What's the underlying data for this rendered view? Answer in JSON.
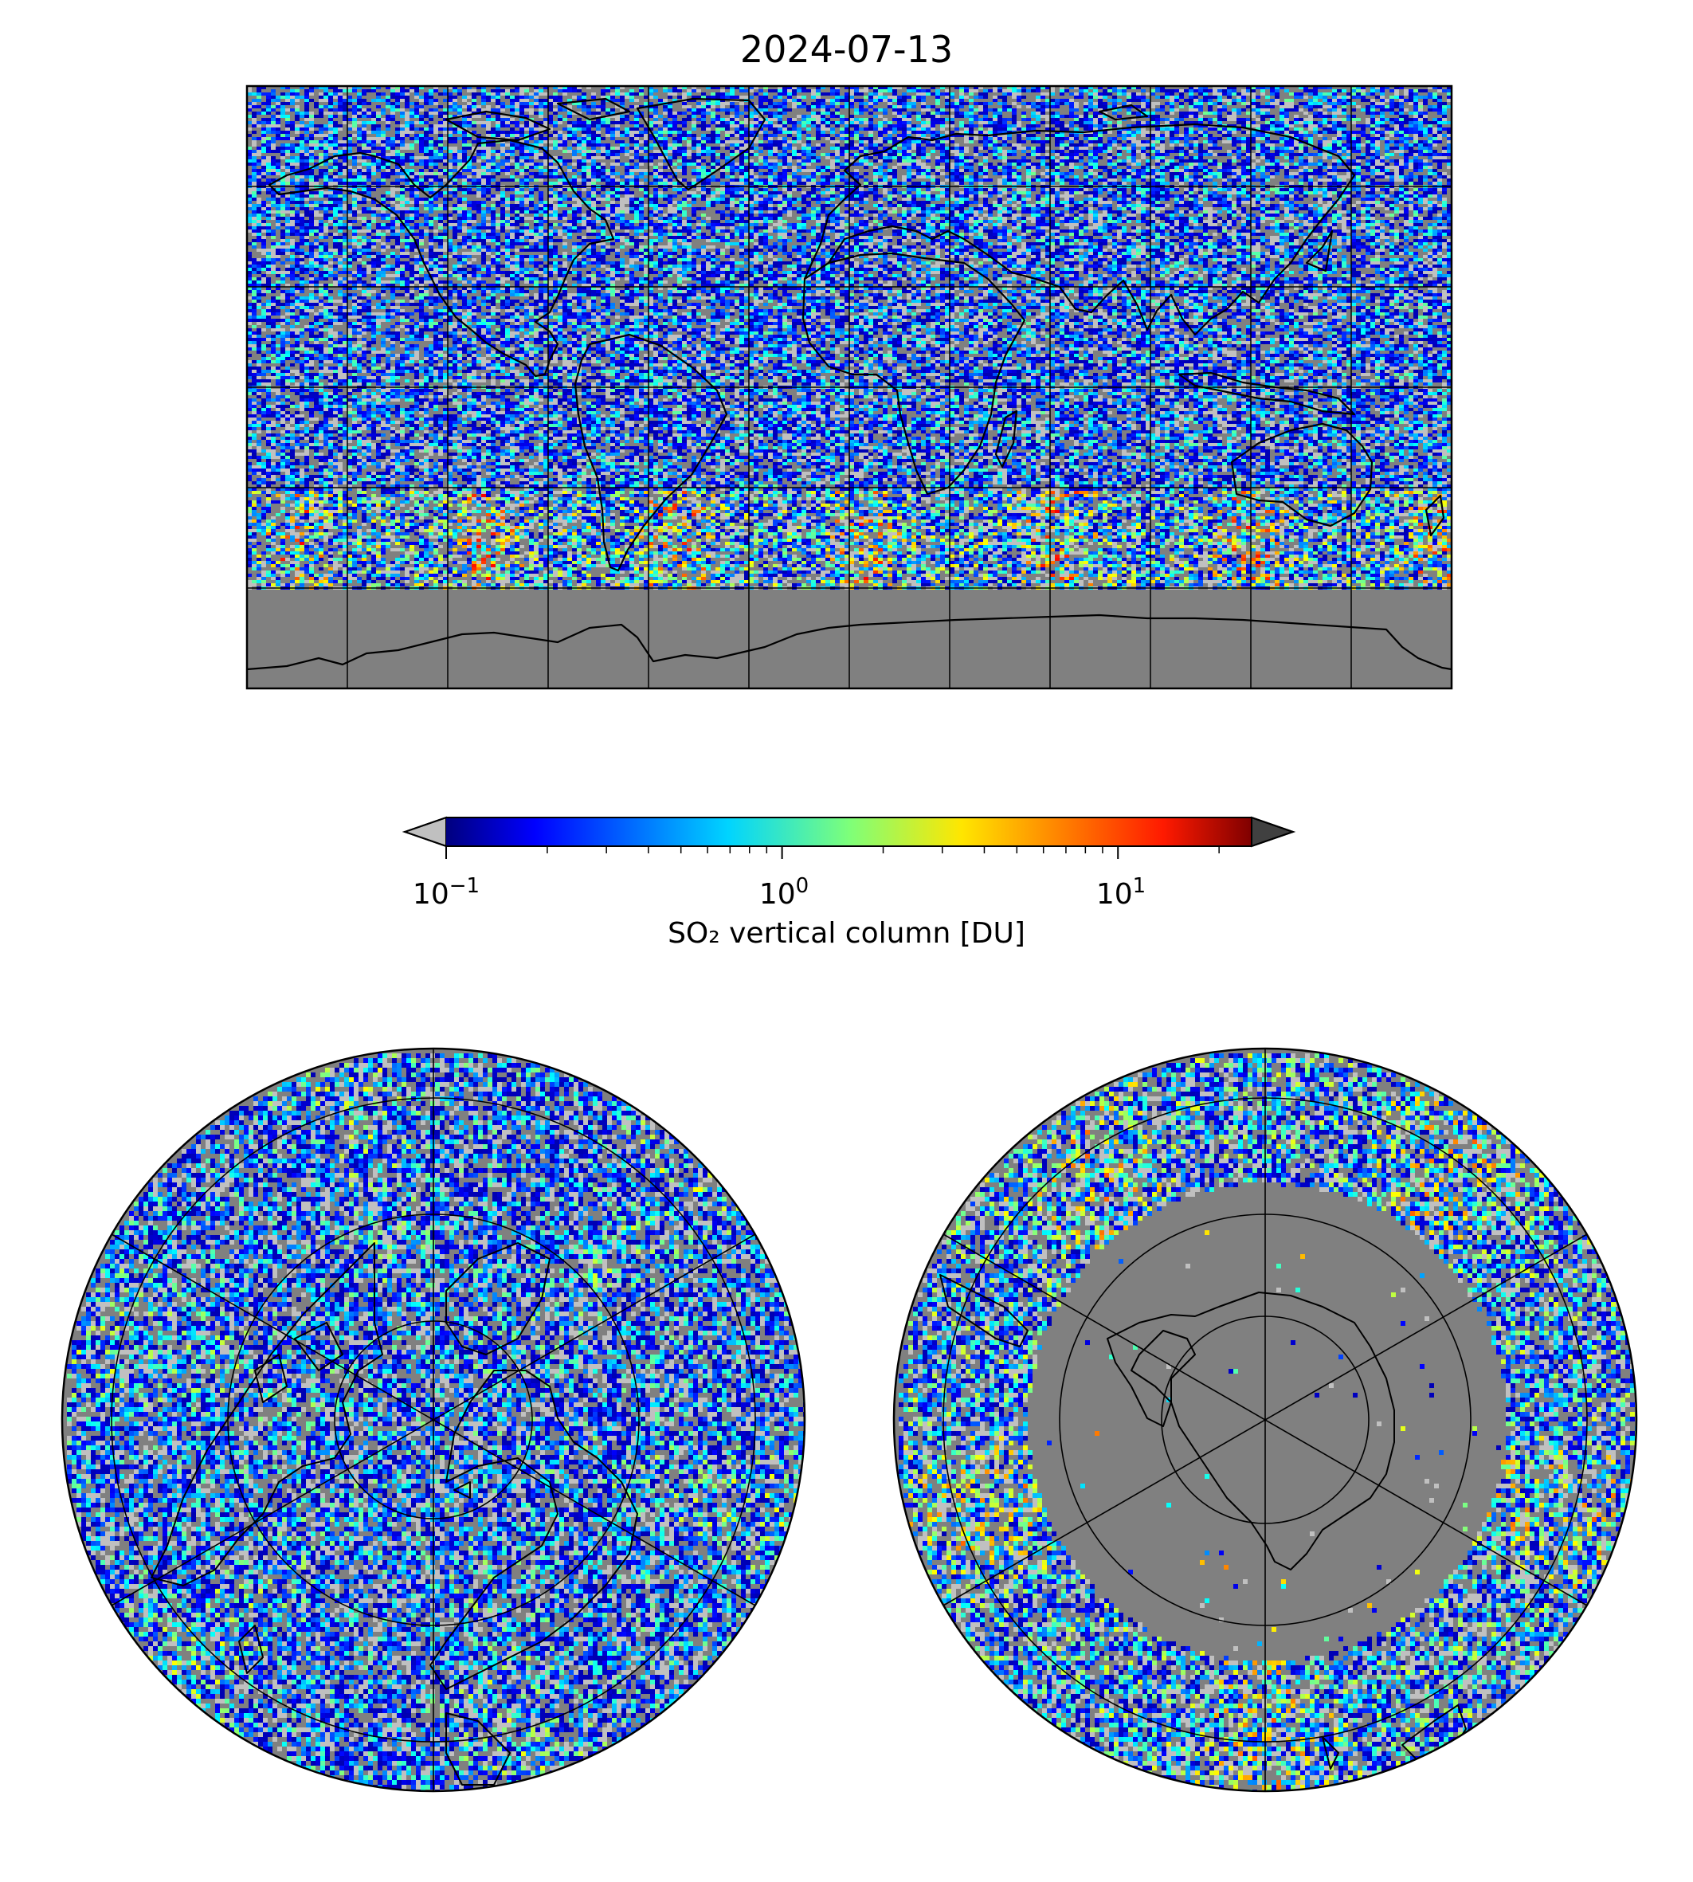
{
  "title": "2024-07-13",
  "colorbar": {
    "label": "SO₂ vertical column [DU]",
    "scale": "log",
    "range": [
      0.1,
      25
    ],
    "extend": "both",
    "under_color": "#c0c0c0",
    "over_color": "#404040",
    "colormap": "jet",
    "ticks": [
      {
        "value": 0.1,
        "base": "10",
        "exponent": "−1"
      },
      {
        "value": 1,
        "base": "10",
        "exponent": "0"
      },
      {
        "value": 10,
        "base": "10",
        "exponent": "1"
      }
    ]
  },
  "colors": {
    "no_data": "#808080",
    "below_range": "#c0c0c0",
    "coastline": "#000000",
    "gridline": "#000000"
  },
  "maps": [
    {
      "name": "global",
      "projection": "equirectangular",
      "lon_range": [
        -180,
        180
      ],
      "lat_range": [
        -90,
        90
      ],
      "gridlines_lon_step": 30,
      "gridlines_lat_step": 30
    },
    {
      "name": "north-polar",
      "projection": "north polar stereographic",
      "boundary_lat": 0,
      "gridlines_lat": [
        30,
        60
      ],
      "gridlines_lon_step": 60
    },
    {
      "name": "south-polar",
      "projection": "south polar stereographic",
      "boundary_lat": 0,
      "gridlines_lat": [
        -30,
        -60
      ],
      "gridlines_lon_step": 60
    }
  ]
}
